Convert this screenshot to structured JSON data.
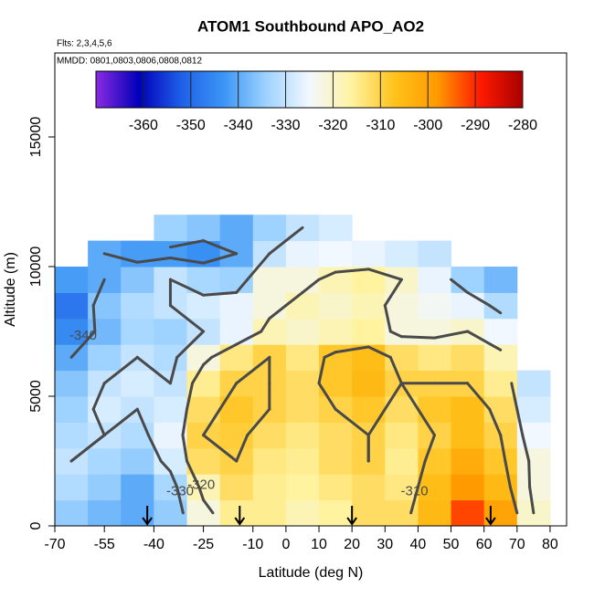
{
  "chart_data": {
    "type": "heatmap",
    "title": "ATOM1 Southbound APO_AO2",
    "subtitle": "Flts: 2,3,4,5,6",
    "annotation": "MMDD: 0801,0803,0806,0808,0812",
    "x_label": "Latitude (deg N)",
    "y_label": "Altitude (m)",
    "xlim": [
      -70,
      85
    ],
    "ylim": [
      0,
      18239
    ],
    "xticks": [
      -70,
      -55,
      -40,
      -25,
      -10,
      0,
      10,
      20,
      30,
      40,
      50,
      60,
      70,
      80
    ],
    "yticks": [
      0,
      5000,
      10000,
      15000
    ],
    "x_edges": [
      -70,
      -60,
      -50,
      -40,
      -30,
      -20,
      -10,
      0,
      10,
      20,
      30,
      40,
      50,
      60,
      70,
      80
    ],
    "y_edges": [
      0,
      1000,
      2000,
      3000,
      4000,
      5000,
      6000,
      7000,
      8000,
      9000,
      10000,
      11000,
      12000
    ],
    "z": [
      [
        -335,
        -338,
        -340,
        -335,
        -322,
        -315,
        -315,
        -318,
        -316,
        -312,
        -312,
        -305,
        -292,
        -300,
        -320
      ],
      [
        -332,
        -335,
        -340,
        -333,
        -318,
        -312,
        -315,
        -316,
        -314,
        -312,
        -314,
        -306,
        -298,
        -305,
        -322
      ],
      [
        -330,
        -333,
        -335,
        -328,
        -312,
        -310,
        -314,
        -315,
        -312,
        -310,
        -315,
        -308,
        -302,
        -308,
        -322
      ],
      [
        -332,
        -330,
        -332,
        -326,
        -310,
        -309,
        -312,
        -314,
        -312,
        -310,
        -314,
        -310,
        -306,
        -310,
        -325
      ],
      [
        -334,
        -328,
        -330,
        -328,
        -312,
        -308,
        -310,
        -312,
        -310,
        -308,
        -312,
        -308,
        -306,
        -312,
        -328
      ],
      [
        -336,
        -330,
        -328,
        -330,
        -315,
        -310,
        -310,
        -312,
        -308,
        -305,
        -310,
        -310,
        -310,
        -315,
        -330
      ],
      [
        -340,
        -334,
        -330,
        -332,
        -322,
        -314,
        -310,
        -314,
        -308,
        -306,
        -312,
        -314,
        -312,
        -318,
        null
      ],
      [
        -345,
        -338,
        -333,
        -334,
        -330,
        -326,
        -318,
        -320,
        -318,
        -316,
        -322,
        -322,
        -320,
        -325,
        null
      ],
      [
        -348,
        -336,
        -332,
        -330,
        -328,
        -326,
        -322,
        -318,
        -320,
        -318,
        -322,
        -324,
        -326,
        -332,
        null
      ],
      [
        -342,
        -340,
        -336,
        -330,
        -333,
        -334,
        -322,
        -322,
        -318,
        -316,
        -320,
        -326,
        -334,
        -338,
        null
      ],
      [
        null,
        -340,
        -342,
        -342,
        -344,
        -340,
        -330,
        -326,
        -325,
        -326,
        -328,
        -330,
        null,
        null,
        null
      ],
      [
        null,
        null,
        null,
        -334,
        -336,
        -340,
        -334,
        -330,
        -328,
        null,
        null,
        null,
        null,
        null,
        null
      ]
    ],
    "zlim": [
      -370,
      -280
    ],
    "colors": [
      "#8a2be2",
      "#0000b8",
      "#1f5fe8",
      "#3c96f5",
      "#9fd3ff",
      "#f2f8ff",
      "#fff3a0",
      "#ffc21a",
      "#ff9a00",
      "#ff1a00",
      "#a80000"
    ],
    "cbar_ticks": [
      -360,
      -350,
      -340,
      -330,
      -320,
      -310,
      -300,
      -290,
      -280
    ],
    "contour_levels": [
      -340,
      -330,
      -320,
      -310
    ],
    "contour_color": "#4a4a4a",
    "arrows_x": [
      -42,
      -14,
      20,
      62
    ]
  }
}
